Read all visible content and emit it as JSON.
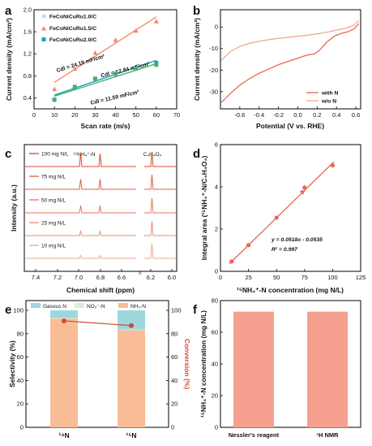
{
  "chart_data": [
    {
      "panel": "a",
      "type": "scatter",
      "xlabel": "Scan rate (m/s)",
      "ylabel": "Current density (mA/cm²)",
      "xlim": [
        0,
        70
      ],
      "ylim": [
        0.2,
        2.0
      ],
      "xticks": [
        0,
        10,
        20,
        30,
        40,
        50,
        60,
        70
      ],
      "yticks": [
        0.4,
        0.8,
        1.2,
        1.6,
        2.0
      ],
      "series": [
        {
          "name": "FeCoNiCuRu1.0/C",
          "color": "#f08a6a",
          "marker": "triangle",
          "x": [
            10,
            20,
            30,
            40,
            50,
            60
          ],
          "y": [
            0.56,
            0.93,
            1.22,
            1.45,
            1.62,
            1.79
          ],
          "fit": [
            [
              10,
              0.68
            ],
            [
              60,
              1.87
            ]
          ],
          "annotation": "Cdl = 24.19 mF/cm²"
        },
        {
          "name": "FeCoNiCuRu1.5/C",
          "color": "#1ea0b8",
          "marker": "circle",
          "x": [
            10,
            20,
            30,
            40,
            50,
            60
          ],
          "y": [
            0.36,
            0.58,
            0.74,
            0.83,
            0.95,
            1.04
          ],
          "fit": [
            [
              10,
              0.45
            ],
            [
              60,
              1.08
            ]
          ],
          "annotation": "Cdl = 12.84 mF/cm²"
        },
        {
          "name": "FeCoNiCuRu2.0/C",
          "color": "#47b06f",
          "marker": "square",
          "x": [
            10,
            20,
            30,
            40,
            50,
            60
          ],
          "y": [
            0.37,
            0.6,
            0.75,
            0.84,
            0.93,
            1.0
          ],
          "fit": [
            [
              10,
              0.43
            ],
            [
              60,
              1.02
            ]
          ],
          "annotation": "Cdl = 11.59 mF/cm²"
        }
      ]
    },
    {
      "panel": "b",
      "type": "line",
      "xlabel": "Potential (V vs. RHE)",
      "ylabel": "Current density (mA/cm²)",
      "xlim": [
        -0.8,
        0.65
      ],
      "ylim": [
        -38,
        8
      ],
      "xticks": [
        -0.6,
        -0.4,
        -0.2,
        0.0,
        0.2,
        0.4,
        0.6
      ],
      "yticks": [
        -30,
        -20,
        -10,
        0
      ],
      "series": [
        {
          "name": "with N",
          "color": "#e8674f",
          "x": [
            -0.79,
            -0.7,
            -0.6,
            -0.5,
            -0.4,
            -0.3,
            -0.2,
            -0.1,
            0.0,
            0.1,
            0.17,
            0.22,
            0.3,
            0.38,
            0.45,
            0.52,
            0.58,
            0.63
          ],
          "y": [
            -35,
            -31,
            -27,
            -24,
            -21.5,
            -19.5,
            -17.5,
            -16,
            -14.5,
            -13,
            -12.5,
            -11,
            -7,
            -4.2,
            -3,
            -2.2,
            -1,
            1.5
          ]
        },
        {
          "name": "w/o N",
          "color": "#f5a78c",
          "x": [
            -0.79,
            -0.7,
            -0.6,
            -0.5,
            -0.4,
            -0.3,
            -0.2,
            -0.1,
            0.0,
            0.1,
            0.2,
            0.3,
            0.4,
            0.5,
            0.58,
            0.63
          ],
          "y": [
            -15.5,
            -11.5,
            -9,
            -7.6,
            -6.6,
            -5.9,
            -5.3,
            -4.8,
            -4.3,
            -3.8,
            -3.2,
            -2.4,
            -1.5,
            -0.5,
            0.8,
            3
          ]
        }
      ]
    },
    {
      "panel": "c",
      "type": "line",
      "xlabel": "Chemical shift (ppm)",
      "ylabel": "Intensity (a.u.)",
      "xticks": [
        "7.4",
        "7.2",
        "7.0",
        "6.8",
        "6.6",
        "6.2",
        "6.0"
      ],
      "peak_labels": [
        "¹⁵NH₄⁺-N",
        "C₄H₄O₄"
      ],
      "series": [
        {
          "name": "100 mg N/L",
          "color": "#d9442e",
          "relative_peak": 1.0
        },
        {
          "name": "75 mg N/L",
          "color": "#e05d45",
          "relative_peak": 0.75
        },
        {
          "name": "50 mg N/L",
          "color": "#e6755c",
          "relative_peak": 0.5
        },
        {
          "name": "25 mg N/L",
          "color": "#ec8e76",
          "relative_peak": 0.25
        },
        {
          "name": "10 mg N/L",
          "color": "#f2a892",
          "relative_peak": 0.1
        }
      ]
    },
    {
      "panel": "d",
      "type": "scatter",
      "xlabel": "¹⁵NH₄⁺-N concentration (mg N/L)",
      "ylabel": "Integral area (¹⁵NH₄⁺-N/C₄H₄O₄)",
      "xlim": [
        0,
        125
      ],
      "ylim": [
        0,
        6
      ],
      "xticks": [
        0,
        25,
        50,
        75,
        100,
        125
      ],
      "yticks": [
        0,
        2,
        4,
        6
      ],
      "points": {
        "x": [
          10,
          25,
          50,
          75,
          100
        ],
        "y": [
          0.47,
          1.24,
          2.54,
          3.97,
          5.02
        ]
      },
      "star": {
        "x": 73,
        "y": 3.75
      },
      "fit": {
        "slope": 0.0518,
        "intercept": -0.0535
      },
      "equation": "y = 0.0518x - 0.0535",
      "r2": "R² = 0.997",
      "color": "#e8674f"
    },
    {
      "panel": "e",
      "type": "bar",
      "categories": [
        "¹⁴N",
        "¹⁵N"
      ],
      "ylabel": "Selectivity (%)",
      "y2label": "Conversion (%)",
      "ylim": [
        0,
        100
      ],
      "yticks": [
        0,
        20,
        40,
        60,
        80,
        100
      ],
      "series": [
        {
          "name": "Gasous N",
          "color": "#9fd7df",
          "values": [
            6.5,
            16.5
          ]
        },
        {
          "name": "NO₂⁻-N",
          "color": "#d8efd6",
          "values": [
            0.5,
            0.5
          ]
        },
        {
          "name": "NH₃-N",
          "color": "#f8bd97",
          "values": [
            93,
            83
          ]
        }
      ],
      "conversion": {
        "values": [
          91,
          87
        ],
        "color": "#d04a35"
      }
    },
    {
      "panel": "f",
      "type": "bar",
      "categories": [
        "Nessler's reagent",
        "¹H NMR"
      ],
      "ylabel": "¹⁵NH₄⁺-N concentration (mg N/L)",
      "ylim": [
        0,
        80
      ],
      "yticks": [
        0,
        20,
        40,
        60,
        80
      ],
      "values": [
        73,
        73
      ],
      "color": "#f5a08e"
    }
  ],
  "labels": {
    "a": "a",
    "b": "b",
    "c": "c",
    "d": "d",
    "e": "e",
    "f": "f",
    "b_legend_1": "with N",
    "b_legend_2": "w/o N",
    "c_xbreak": "//",
    "e_legend_1": "Gasous N",
    "e_legend_2": "NO₂⁻-N",
    "e_legend_3": "NH₃-N"
  }
}
